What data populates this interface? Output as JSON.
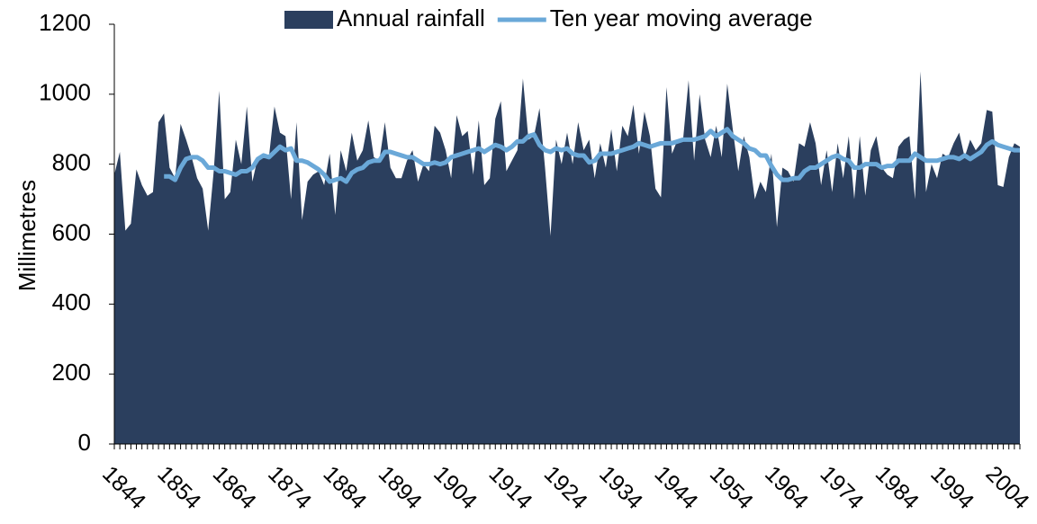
{
  "chart_data": {
    "type": "area",
    "y_label": "Millimetres",
    "x": [
      1844,
      1845,
      1846,
      1847,
      1848,
      1849,
      1850,
      1851,
      1852,
      1853,
      1854,
      1855,
      1856,
      1857,
      1858,
      1859,
      1860,
      1861,
      1862,
      1863,
      1864,
      1865,
      1866,
      1867,
      1868,
      1869,
      1870,
      1871,
      1872,
      1873,
      1874,
      1875,
      1876,
      1877,
      1878,
      1879,
      1880,
      1881,
      1882,
      1883,
      1884,
      1885,
      1886,
      1887,
      1888,
      1889,
      1890,
      1891,
      1892,
      1893,
      1894,
      1895,
      1896,
      1897,
      1898,
      1899,
      1900,
      1901,
      1902,
      1903,
      1904,
      1905,
      1906,
      1907,
      1908,
      1909,
      1910,
      1911,
      1912,
      1913,
      1914,
      1915,
      1916,
      1917,
      1918,
      1919,
      1920,
      1921,
      1922,
      1923,
      1924,
      1925,
      1926,
      1927,
      1928,
      1929,
      1930,
      1931,
      1932,
      1933,
      1934,
      1935,
      1936,
      1937,
      1938,
      1939,
      1940,
      1941,
      1942,
      1943,
      1944,
      1945,
      1946,
      1947,
      1948,
      1949,
      1950,
      1951,
      1952,
      1953,
      1954,
      1955,
      1956,
      1957,
      1958,
      1959,
      1960,
      1961,
      1962,
      1963,
      1964,
      1965,
      1966,
      1967,
      1968,
      1969,
      1970,
      1971,
      1972,
      1973,
      1974,
      1975,
      1976,
      1977,
      1978,
      1979,
      1980,
      1981,
      1982,
      1983,
      1984,
      1985,
      1986,
      1987,
      1988,
      1989,
      1990,
      1991,
      1992,
      1993,
      1994,
      1995,
      1996,
      1997,
      1998,
      1999,
      2000,
      2001,
      2002,
      2003,
      2004,
      2005,
      2006,
      2007,
      2008
    ],
    "series": [
      {
        "name": "Annual rainfall",
        "color": "#2b3f5e",
        "kind": "area",
        "values": [
          770,
          835,
          610,
          630,
          785,
          740,
          710,
          720,
          920,
          945,
          790,
          760,
          915,
          870,
          820,
          760,
          730,
          610,
          780,
          1010,
          700,
          720,
          870,
          800,
          965,
          750,
          820,
          830,
          820,
          965,
          890,
          880,
          700,
          920,
          640,
          750,
          770,
          780,
          740,
          830,
          655,
          840,
          780,
          890,
          810,
          840,
          925,
          820,
          810,
          920,
          790,
          760,
          760,
          810,
          840,
          750,
          800,
          780,
          910,
          890,
          840,
          760,
          940,
          880,
          895,
          770,
          925,
          740,
          760,
          930,
          980,
          780,
          810,
          840,
          1045,
          870,
          880,
          960,
          790,
          595,
          870,
          800,
          890,
          800,
          920,
          840,
          870,
          760,
          860,
          790,
          900,
          780,
          910,
          880,
          970,
          830,
          950,
          880,
          730,
          705,
          1020,
          830,
          870,
          870,
          1040,
          810,
          1000,
          870,
          820,
          910,
          820,
          1030,
          900,
          780,
          880,
          820,
          700,
          750,
          720,
          830,
          620,
          790,
          780,
          750,
          860,
          850,
          920,
          860,
          740,
          840,
          720,
          860,
          760,
          880,
          700,
          880,
          710,
          840,
          880,
          790,
          770,
          760,
          850,
          870,
          880,
          700,
          1065,
          720,
          800,
          760,
          830,
          820,
          860,
          890,
          820,
          870,
          840,
          860,
          955,
          950,
          740,
          735,
          820,
          860,
          850
        ]
      },
      {
        "name": "Ten year moving average",
        "color": "#6aa8d8",
        "kind": "line",
        "values": [
          null,
          null,
          null,
          null,
          null,
          null,
          null,
          null,
          null,
          765,
          765,
          755,
          790,
          815,
          820,
          820,
          810,
          790,
          790,
          780,
          780,
          775,
          770,
          780,
          780,
          790,
          815,
          825,
          820,
          835,
          850,
          840,
          845,
          810,
          810,
          805,
          795,
          785,
          770,
          750,
          755,
          760,
          750,
          775,
          785,
          790,
          805,
          810,
          810,
          835,
          835,
          830,
          825,
          820,
          820,
          810,
          800,
          800,
          805,
          800,
          805,
          820,
          825,
          830,
          835,
          840,
          845,
          835,
          845,
          855,
          850,
          840,
          850,
          865,
          865,
          880,
          885,
          855,
          840,
          835,
          845,
          840,
          845,
          830,
          825,
          825,
          805,
          810,
          830,
          830,
          830,
          835,
          840,
          845,
          850,
          860,
          855,
          850,
          855,
          860,
          860,
          860,
          865,
          870,
          870,
          870,
          875,
          880,
          895,
          880,
          890,
          900,
          880,
          870,
          860,
          845,
          840,
          825,
          825,
          795,
          770,
          755,
          755,
          760,
          760,
          780,
          790,
          790,
          800,
          810,
          820,
          825,
          815,
          810,
          790,
          790,
          800,
          800,
          800,
          790,
          795,
          795,
          810,
          810,
          810,
          830,
          820,
          810,
          810,
          810,
          815,
          820,
          820,
          815,
          825,
          815,
          825,
          835,
          855,
          865,
          855,
          850,
          845,
          840,
          840
        ]
      }
    ],
    "xlim": [
      1844,
      2008
    ],
    "xticks": [
      1844,
      1854,
      1864,
      1874,
      1884,
      1894,
      1904,
      1914,
      1924,
      1934,
      1944,
      1954,
      1964,
      1974,
      1984,
      1994,
      2004
    ],
    "ylim": [
      0,
      1200
    ],
    "yticks": [
      0,
      200,
      400,
      600,
      800,
      1000,
      1200
    ],
    "legend": "top"
  }
}
